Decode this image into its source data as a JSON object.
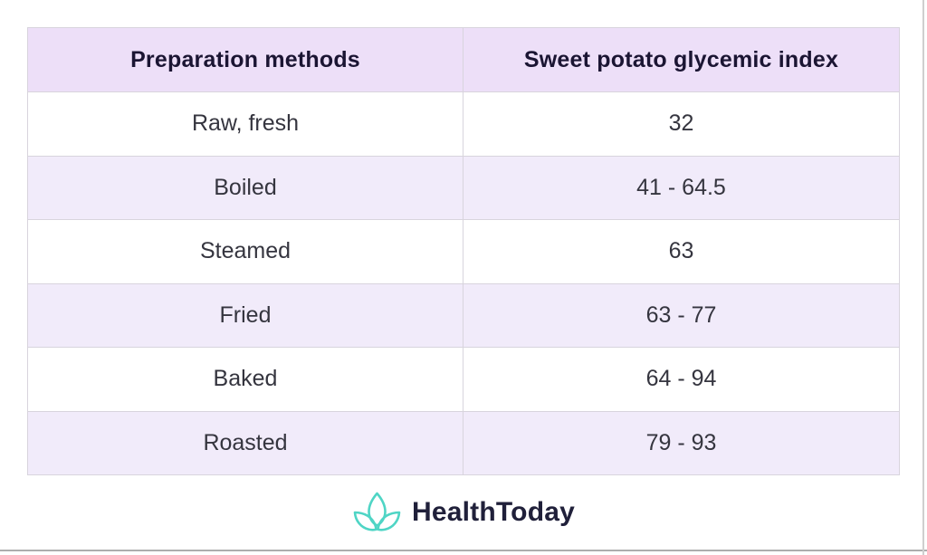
{
  "chart_data": {
    "type": "table",
    "columns": [
      "Preparation methods",
      "Sweet potato glycemic index"
    ],
    "rows": [
      [
        "Raw, fresh",
        "32"
      ],
      [
        "Boiled",
        "41 - 64.5"
      ],
      [
        "Steamed",
        "63"
      ],
      [
        "Fried",
        "63 - 77"
      ],
      [
        "Baked",
        "64 - 94"
      ],
      [
        "Roasted",
        "79 - 93"
      ]
    ],
    "layout_hints": {
      "striped": true,
      "stripe_rows": "even rows lavender, odd rows white",
      "header_style": "bold on lavender"
    }
  },
  "footer": {
    "brand": "HealthToday",
    "logo_icon": "lotus-icon"
  },
  "colors": {
    "header_bg": "#EDDFF8",
    "row_alt_bg": "#F1EBFA",
    "row_bg": "#FFFFFF",
    "border": "#D8D4DD",
    "header_text": "#1B1533",
    "body_text": "#35353F",
    "brand_teal": "#4FD5C5",
    "brand_text": "#20203A",
    "page_bg": "#FFFFFF"
  }
}
